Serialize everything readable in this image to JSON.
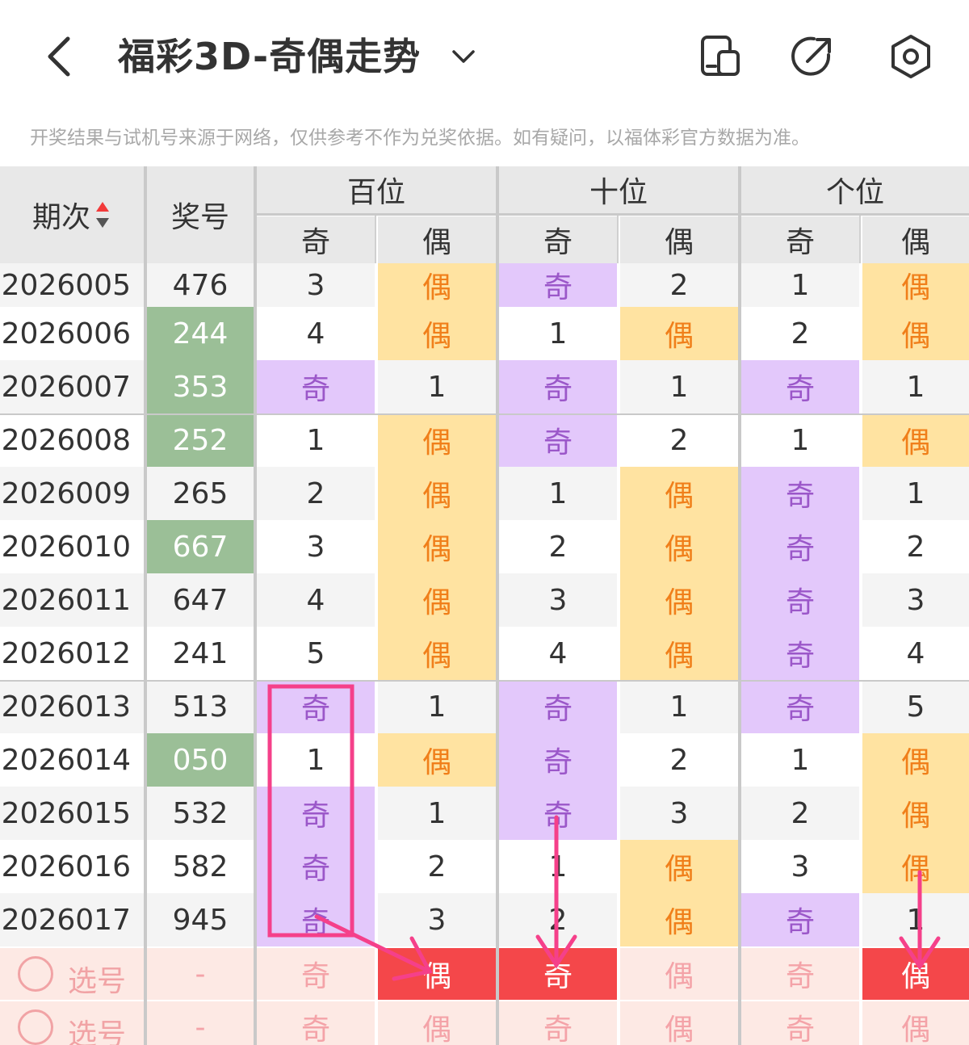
{
  "header": {
    "title": "福彩3D-奇偶走势",
    "disclaimer": "开奖结果与试机号来源于网络，仅供参考不作为兑奖依据。如有疑问，以福体彩官方数据为准。",
    "icons": [
      "back-icon",
      "chevron-down-icon",
      "ticket-icon",
      "share-icon",
      "settings-icon"
    ]
  },
  "table": {
    "col_period": "期次",
    "col_number": "奖号",
    "groups": [
      "百位",
      "十位",
      "个位"
    ],
    "sub_odd": "奇",
    "sub_even": "偶",
    "rows": [
      {
        "period": "2026005",
        "number": "476",
        "win": false,
        "cells": [
          "3",
          "偶",
          "奇",
          "2",
          "1",
          "偶"
        ]
      },
      {
        "period": "2026006",
        "number": "244",
        "win": true,
        "cells": [
          "4",
          "偶",
          "1",
          "偶",
          "2",
          "偶"
        ]
      },
      {
        "period": "2026007",
        "number": "353",
        "win": true,
        "cells": [
          "奇",
          "1",
          "奇",
          "1",
          "奇",
          "1"
        ]
      },
      {
        "period": "2026008",
        "number": "252",
        "win": true,
        "cells": [
          "1",
          "偶",
          "奇",
          "2",
          "1",
          "偶"
        ]
      },
      {
        "period": "2026009",
        "number": "265",
        "win": false,
        "cells": [
          "2",
          "偶",
          "1",
          "偶",
          "奇",
          "1"
        ]
      },
      {
        "period": "2026010",
        "number": "667",
        "win": true,
        "cells": [
          "3",
          "偶",
          "2",
          "偶",
          "奇",
          "2"
        ]
      },
      {
        "period": "2026011",
        "number": "647",
        "win": false,
        "cells": [
          "4",
          "偶",
          "3",
          "偶",
          "奇",
          "3"
        ]
      },
      {
        "period": "2026012",
        "number": "241",
        "win": false,
        "cells": [
          "5",
          "偶",
          "4",
          "偶",
          "奇",
          "4"
        ]
      },
      {
        "period": "2026013",
        "number": "513",
        "win": false,
        "cells": [
          "奇",
          "1",
          "奇",
          "1",
          "奇",
          "5"
        ]
      },
      {
        "period": "2026014",
        "number": "050",
        "win": true,
        "cells": [
          "1",
          "偶",
          "奇",
          "2",
          "1",
          "偶"
        ]
      },
      {
        "period": "2026015",
        "number": "532",
        "win": false,
        "cells": [
          "奇",
          "1",
          "奇",
          "3",
          "2",
          "偶"
        ]
      },
      {
        "period": "2026016",
        "number": "582",
        "win": false,
        "cells": [
          "奇",
          "2",
          "1",
          "偶",
          "3",
          "偶"
        ]
      },
      {
        "period": "2026017",
        "number": "945",
        "win": false,
        "cells": [
          "奇",
          "3",
          "2",
          "偶",
          "奇",
          "1"
        ]
      }
    ],
    "pick_rows": [
      {
        "label": "选号",
        "number": "-",
        "cells": [
          "奇",
          "偶",
          "奇",
          "偶",
          "奇",
          "偶"
        ],
        "hot": [
          false,
          true,
          true,
          false,
          false,
          true
        ]
      },
      {
        "label": "选号",
        "number": "-",
        "cells": [
          "奇",
          "偶",
          "奇",
          "偶",
          "奇",
          "偶"
        ],
        "hot": [
          false,
          false,
          false,
          false,
          false,
          false
        ]
      }
    ]
  },
  "colors": {
    "odd_bg": "#e3c8fb",
    "even_bg": "#ffe3a1",
    "win_bg": "#9bbf97",
    "hot_bg": "#f4474a",
    "annotation": "#f5408a"
  }
}
